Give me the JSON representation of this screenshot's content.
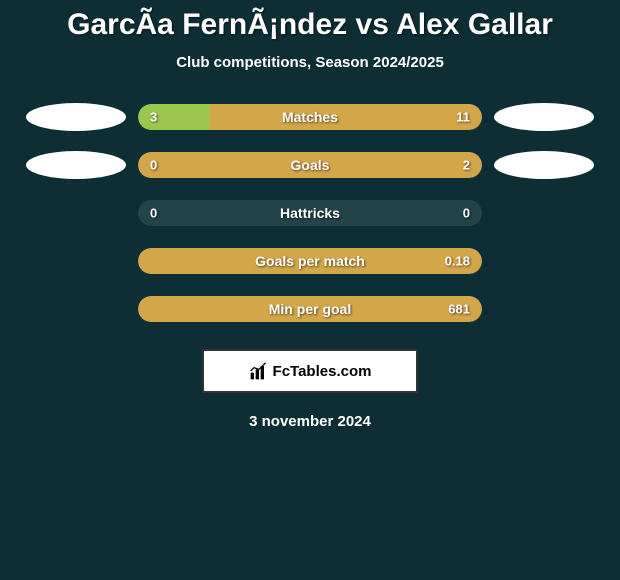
{
  "title": "GarcÃ­a FernÃ¡ndez vs Alex Gallar",
  "subtitle": "Club competitions, Season 2024/2025",
  "date": "3 november 2024",
  "brand": {
    "text": "FcTables.com"
  },
  "colors": {
    "background": "#0d2e34",
    "bar_bg": "#224449",
    "left_bar": "#9cc74f",
    "right_bar": "#d4a64a",
    "ellipse": "#ffffff",
    "text": "#ffffff"
  },
  "stats": [
    {
      "label": "Matches",
      "left_val": "3",
      "right_val": "11",
      "left_pct": 21,
      "right_pct": 79,
      "show_ellipse": true
    },
    {
      "label": "Goals",
      "left_val": "0",
      "right_val": "2",
      "left_pct": 0,
      "right_pct": 100,
      "show_ellipse": true
    },
    {
      "label": "Hattricks",
      "left_val": "0",
      "right_val": "0",
      "left_pct": 0,
      "right_pct": 0,
      "show_ellipse": false
    },
    {
      "label": "Goals per match",
      "left_val": "",
      "right_val": "0.18",
      "left_pct": 0,
      "right_pct": 100,
      "show_ellipse": false
    },
    {
      "label": "Min per goal",
      "left_val": "",
      "right_val": "681",
      "left_pct": 0,
      "right_pct": 100,
      "show_ellipse": false
    }
  ]
}
